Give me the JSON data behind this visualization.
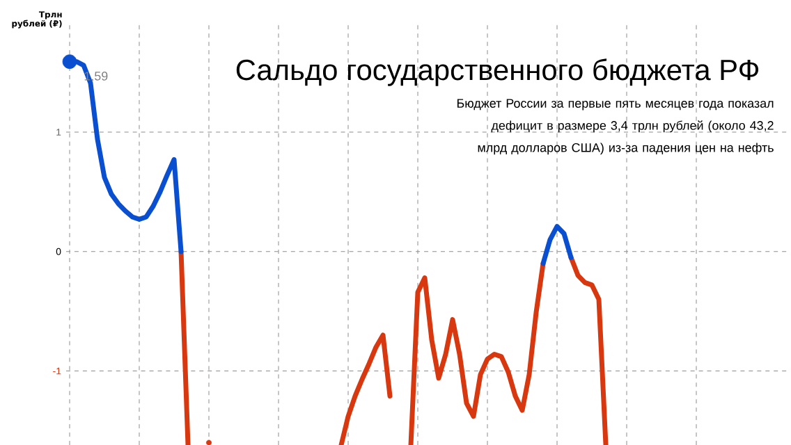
{
  "chart_data": {
    "type": "line",
    "title": "Сальдо государственного бюджета РФ",
    "subtitle": "Бюджет России за первые пять месяцев года показал дефицит в размере 3,4 трлн рублей (около 43,2 млрд долларов США) из-за падения цен на нефть",
    "ylabel": "Трлн рублей (₽)",
    "categories": [
      null,
      null,
      null,
      null,
      null,
      null,
      null,
      null,
      null,
      null,
      null,
      null,
      null,
      null,
      null,
      null,
      null,
      null,
      null,
      null,
      null,
      null,
      null,
      null,
      null,
      null,
      null,
      null,
      null,
      null,
      null,
      null,
      null,
      null,
      null,
      null,
      null,
      null,
      null,
      null,
      null,
      null,
      null,
      null,
      null,
      null,
      null,
      null,
      null,
      null,
      null,
      null,
      null,
      null,
      null,
      null,
      null,
      null,
      null,
      null,
      null,
      null,
      null,
      null,
      null,
      null,
      null,
      null,
      null,
      null,
      null,
      null,
      null,
      null,
      null,
      null,
      null,
      null,
      null,
      null,
      null,
      null,
      null,
      null,
      null,
      null,
      null,
      null,
      null,
      null,
      null,
      null,
      null,
      null,
      null,
      null,
      null,
      null,
      null,
      null,
      null,
      null,
      null,
      null
    ],
    "series": [
      {
        "color": "#d8380f",
        "values": [
          null,
          null,
          null,
          null,
          null,
          null,
          null,
          null,
          null,
          null,
          null,
          null,
          null,
          null,
          null,
          null,
          0.0,
          -1.62,
          null,
          null,
          -1.6,
          null,
          null,
          null,
          null,
          null,
          null,
          null,
          null,
          null,
          null,
          null,
          null,
          null,
          null,
          null,
          null,
          null,
          null,
          -1.62,
          -1.38,
          -1.21,
          -1.07,
          -0.94,
          -0.8,
          -0.7,
          -1.21,
          null,
          null,
          -1.62,
          -0.34,
          -0.22,
          -0.74,
          -1.06,
          -0.86,
          -0.57,
          -0.86,
          -1.27,
          -1.38,
          -1.03,
          -0.9,
          -0.86,
          -0.88,
          -1.01,
          -1.21,
          -1.33,
          -1.03,
          -0.51,
          -0.1,
          null,
          null,
          null,
          -0.05,
          -0.2,
          -0.26,
          -0.28,
          -0.4,
          -1.62,
          null,
          null,
          null,
          null,
          null,
          null,
          null,
          null,
          null,
          null,
          null,
          null,
          null,
          null,
          null,
          null,
          null,
          null,
          null,
          null,
          null,
          null,
          null,
          null,
          null,
          null
        ]
      },
      {
        "color": "#0a4fd0",
        "values": [
          1.59,
          1.59,
          1.56,
          1.41,
          0.94,
          0.62,
          0.48,
          0.4,
          0.34,
          0.29,
          0.27,
          0.29,
          0.38,
          0.5,
          0.64,
          0.77,
          0.0,
          null,
          null,
          null,
          null,
          null,
          null,
          null,
          null,
          null,
          null,
          null,
          null,
          null,
          null,
          null,
          null,
          null,
          null,
          null,
          null,
          null,
          null,
          null,
          null,
          null,
          null,
          null,
          null,
          null,
          null,
          null,
          null,
          null,
          null,
          null,
          null,
          null,
          null,
          null,
          null,
          null,
          null,
          null,
          null,
          null,
          null,
          null,
          null,
          null,
          null,
          null,
          -0.1,
          0.1,
          0.21,
          0.15,
          -0.05,
          null,
          null,
          null,
          null,
          null,
          null,
          null,
          null,
          null,
          null,
          null,
          null,
          null,
          null,
          null,
          null,
          null,
          null,
          null,
          null,
          null,
          null,
          null,
          null,
          null,
          null,
          null,
          null,
          null,
          null,
          null
        ],
        "value_labels": [
          "1,59",
          null,
          null,
          null,
          null,
          null,
          null,
          null,
          null,
          null,
          null,
          null,
          null,
          null,
          null,
          null,
          null,
          null,
          null,
          null,
          null,
          null,
          null,
          null,
          null,
          null,
          null,
          null,
          null,
          null,
          null,
          null,
          null,
          null,
          null,
          null,
          null,
          null,
          null,
          null,
          null,
          null,
          null,
          null,
          null,
          null,
          null,
          null,
          null,
          null,
          null,
          null,
          null,
          null,
          null,
          null,
          null,
          null,
          null,
          null,
          null,
          null,
          null,
          null,
          null,
          null,
          null,
          null,
          null,
          null,
          null,
          null,
          null,
          null,
          null,
          null,
          null,
          null,
          null,
          null,
          null,
          null,
          null,
          null,
          null,
          null,
          null,
          null,
          null,
          null,
          null,
          null,
          null,
          null,
          null,
          null,
          null,
          null,
          null,
          null,
          null,
          null,
          null,
          null
        ]
      }
    ],
    "ylim": [
      -1.62,
      1.92
    ],
    "yticks": [
      -1,
      0,
      1
    ],
    "grid": true,
    "line_style": "solid"
  }
}
